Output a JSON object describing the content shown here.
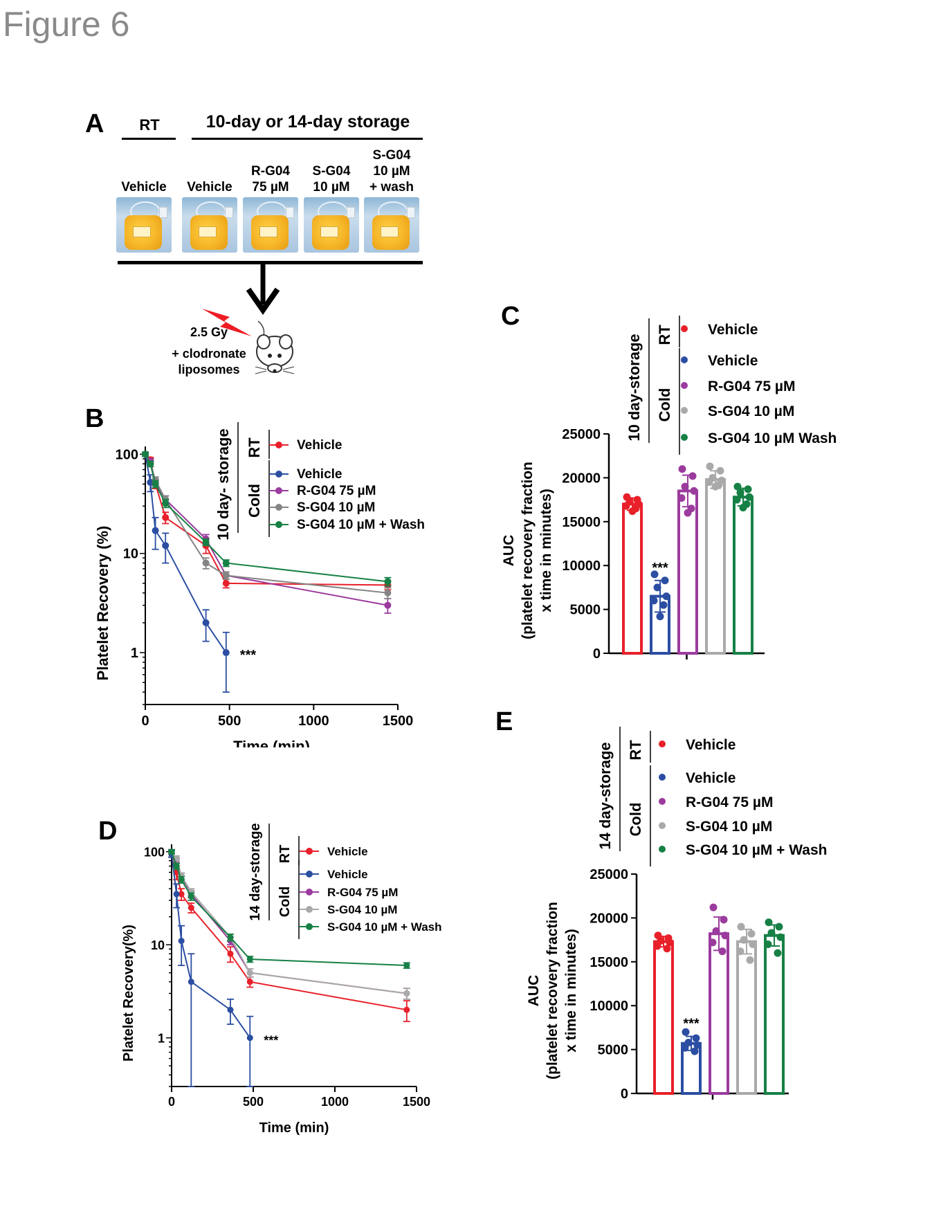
{
  "figure_title": "Figure 6",
  "panel_labels": {
    "a": "A",
    "b": "B",
    "c": "C",
    "d": "D",
    "e": "E"
  },
  "panel_a": {
    "rt_header": "RT",
    "storage_header": "10-day or 14-day storage",
    "bags": [
      {
        "label": "Vehicle",
        "group": "RT"
      },
      {
        "label": "Vehicle",
        "group": "storage"
      },
      {
        "label": "R-G04\n75 µM",
        "group": "storage"
      },
      {
        "label": "S-G04\n10 µM",
        "group": "storage"
      },
      {
        "label": "S-G04\n10 µM\n+ wash",
        "group": "storage"
      }
    ],
    "dose_label": "2.5 Gy",
    "treatment_label": "+ clodronate\nliposomes",
    "colors": {
      "bag": "#f4b324",
      "bolt": "#ee1c25"
    },
    "icons": [
      "blood-bag-icon",
      "down-arrow-icon",
      "lightning-icon",
      "mouse-icon"
    ]
  },
  "chart_data": [
    {
      "id": "B",
      "type": "line",
      "yscale": "log",
      "xlabel": "Time (min)",
      "ylabel": "Platelet Recovery (%)",
      "xlim": [
        0,
        1500
      ],
      "ylim": [
        0.3,
        120
      ],
      "xticks": [
        0,
        500,
        1000,
        1500
      ],
      "yticks": [
        1,
        10,
        100
      ],
      "significance": "***",
      "legend_group_title": "10 day- storage",
      "legend_groups": [
        {
          "label": "RT",
          "series": [
            0
          ]
        },
        {
          "label": "Cold",
          "series": [
            1,
            2,
            3,
            4
          ]
        }
      ],
      "series": [
        {
          "name": "Vehicle",
          "color": "#e8202a",
          "x": [
            0,
            30,
            60,
            120,
            360,
            480,
            1440
          ],
          "y": [
            100,
            88,
            50,
            23,
            12,
            5,
            4.8
          ],
          "err": [
            5,
            5,
            5,
            3,
            2,
            0.5,
            0.5
          ]
        },
        {
          "name": "Vehicle",
          "color": "#2b4ea2",
          "x": [
            0,
            30,
            60,
            120,
            360,
            480
          ],
          "y": [
            100,
            52,
            17,
            12,
            2,
            1
          ],
          "err": [
            5,
            10,
            6,
            4,
            0.7,
            0.6
          ]
        },
        {
          "name": "R-G04 75 µM",
          "color": "#9b3b9e",
          "x": [
            0,
            30,
            60,
            120,
            360,
            480,
            1440
          ],
          "y": [
            100,
            85,
            52,
            35,
            14,
            6,
            3
          ],
          "err": [
            5,
            5,
            4,
            3,
            1.5,
            0.5,
            0.5
          ]
        },
        {
          "name": "S-G04 10 µM",
          "color": "#858585",
          "x": [
            0,
            30,
            60,
            120,
            360,
            480,
            1440
          ],
          "y": [
            100,
            80,
            55,
            35,
            8,
            6,
            4
          ],
          "err": [
            5,
            5,
            4,
            3,
            1,
            0.5,
            0.5
          ]
        },
        {
          "name": "S-G04 10 µM + Wash",
          "color": "#168045",
          "x": [
            0,
            30,
            60,
            120,
            360,
            480,
            1440
          ],
          "y": [
            100,
            80,
            50,
            32,
            13,
            8,
            5.2
          ],
          "err": [
            5,
            5,
            4,
            3,
            1,
            0.6,
            0.5
          ]
        }
      ]
    },
    {
      "id": "C",
      "type": "bar",
      "ylabel": "AUC\n(platelet recovery fraction\nx time in minutes)",
      "ylim": [
        0,
        25000
      ],
      "yticks": [
        0,
        5000,
        10000,
        15000,
        20000,
        25000
      ],
      "significance": "***",
      "legend_group_title": "10 day-storage",
      "legend_groups": [
        {
          "label": "RT",
          "series": [
            0
          ]
        },
        {
          "label": "Cold",
          "series": [
            1,
            2,
            3,
            4
          ]
        }
      ],
      "series": [
        {
          "name": "Vehicle",
          "color": "#e8202a",
          "value": 17000,
          "sd": 700,
          "points": [
            17800,
            17500,
            17300,
            17000,
            16800,
            16500,
            16200
          ]
        },
        {
          "name": "Vehicle",
          "color": "#2b4ea2",
          "value": 6500,
          "sd": 1800,
          "points": [
            9000,
            8300,
            7500,
            6500,
            6000,
            5500,
            4200
          ]
        },
        {
          "name": "R-G04 75 µM",
          "color": "#9b3b9e",
          "value": 18500,
          "sd": 1800,
          "points": [
            21000,
            20200,
            19000,
            18500,
            17700,
            16500,
            16000
          ]
        },
        {
          "name": "S-G04 10 µM",
          "color": "#a9a9a9",
          "value": 19800,
          "sd": 1000,
          "points": [
            21300,
            20800,
            20000,
            19700,
            19500,
            19200,
            19000
          ]
        },
        {
          "name": "S-G04 10 µM Wash",
          "color": "#168045",
          "value": 17800,
          "sd": 1000,
          "points": [
            19000,
            18700,
            18300,
            17800,
            17500,
            17000,
            16600
          ]
        }
      ]
    },
    {
      "id": "D",
      "type": "line",
      "yscale": "log",
      "xlabel": "Time (min)",
      "ylabel": "Platelet Recovery(%)",
      "xlim": [
        0,
        1500
      ],
      "ylim": [
        0.3,
        120
      ],
      "xticks": [
        0,
        500,
        1000,
        1500
      ],
      "yticks": [
        1,
        10,
        100
      ],
      "significance": "***",
      "legend_group_title": "14 day-storage",
      "legend_groups": [
        {
          "label": "RT",
          "series": [
            0
          ]
        },
        {
          "label": "Cold",
          "series": [
            1,
            2,
            3,
            4
          ]
        }
      ],
      "series": [
        {
          "name": "Vehicle",
          "color": "#e8202a",
          "x": [
            0,
            30,
            60,
            120,
            360,
            480,
            1440
          ],
          "y": [
            100,
            60,
            35,
            25,
            8,
            4,
            2
          ],
          "err": [
            5,
            10,
            5,
            3,
            1.5,
            0.5,
            0.5
          ]
        },
        {
          "name": "Vehicle",
          "color": "#2b4ea2",
          "x": [
            0,
            30,
            60,
            120,
            360,
            480
          ],
          "y": [
            95,
            35,
            11,
            4,
            2,
            1
          ],
          "err": [
            8,
            10,
            5,
            4,
            0.6,
            0.7
          ]
        },
        {
          "name": "R-G04 75 µM",
          "color": "#9b3b9e",
          "x": [
            0,
            30,
            60,
            120,
            360,
            480,
            1440
          ],
          "y": [
            100,
            80,
            55,
            35,
            11,
            5,
            3
          ],
          "err": [
            5,
            5,
            4,
            3,
            1,
            0.5,
            0.4
          ]
        },
        {
          "name": "S-G04 10 µM",
          "color": "#a9a9a9",
          "x": [
            0,
            30,
            60,
            120,
            360,
            480,
            1440
          ],
          "y": [
            100,
            85,
            55,
            37,
            12,
            5,
            3
          ],
          "err": [
            5,
            5,
            4,
            3,
            1,
            0.5,
            0.4
          ]
        },
        {
          "name": "S-G04 10 µM + Wash",
          "color": "#168045",
          "x": [
            0,
            30,
            60,
            120,
            360,
            480,
            1440
          ],
          "y": [
            100,
            70,
            50,
            33,
            12,
            7,
            6
          ],
          "err": [
            5,
            5,
            4,
            3,
            1,
            0.5,
            0.4
          ]
        }
      ]
    },
    {
      "id": "E",
      "type": "bar",
      "ylabel": "AUC\n(platelet recovery fraction\nx time in minutes)",
      "ylim": [
        0,
        25000
      ],
      "yticks": [
        0,
        5000,
        10000,
        15000,
        20000,
        25000
      ],
      "significance": "***",
      "legend_group_title": "14 day-storage",
      "legend_groups": [
        {
          "label": "RT",
          "series": [
            0
          ]
        },
        {
          "label": "Cold",
          "series": [
            1,
            2,
            3,
            4
          ]
        }
      ],
      "series": [
        {
          "name": "Vehicle",
          "color": "#e8202a",
          "value": 17300,
          "sd": 600,
          "points": [
            18000,
            17700,
            17400,
            17200,
            16800,
            16500
          ]
        },
        {
          "name": "Vehicle",
          "color": "#2b4ea2",
          "value": 5700,
          "sd": 800,
          "points": [
            7000,
            6300,
            5800,
            5500,
            5200,
            4800
          ]
        },
        {
          "name": "R-G04 75 µM",
          "color": "#9b3b9e",
          "value": 18200,
          "sd": 1900,
          "points": [
            21200,
            19800,
            18500,
            18000,
            17200,
            16200
          ]
        },
        {
          "name": "S-G04 10 µM",
          "color": "#a9a9a9",
          "value": 17300,
          "sd": 1400,
          "points": [
            19000,
            18200,
            17500,
            17000,
            16200,
            15200
          ]
        },
        {
          "name": "S-G04 10 µM + Wash",
          "color": "#168045",
          "value": 18000,
          "sd": 1200,
          "points": [
            19500,
            19000,
            18300,
            17800,
            17000,
            16000
          ]
        }
      ]
    }
  ]
}
